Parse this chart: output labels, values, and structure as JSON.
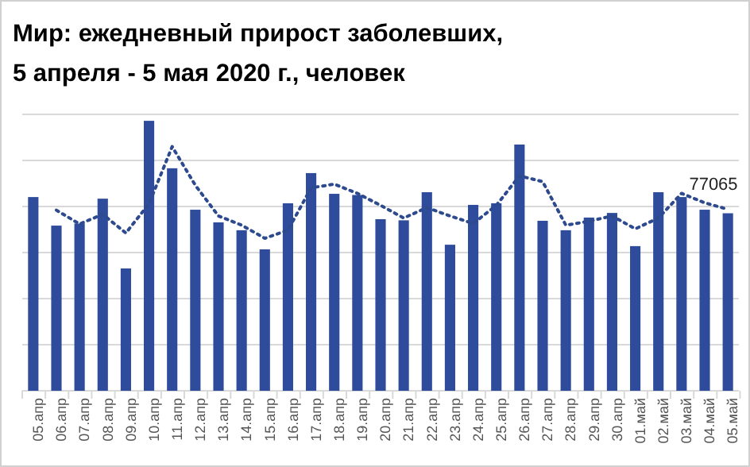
{
  "chart_data": {
    "type": "bar",
    "title": "Мир: ежедневный прирост заболевших, 5 апреля - 5 мая 2020 г., человек",
    "categories": [
      "05.апр",
      "06.апр",
      "07.апр",
      "08.апр",
      "09.апр",
      "10.апр",
      "11.апр",
      "12.апр",
      "13.апр",
      "14.апр",
      "15.апр",
      "16.апр",
      "17.апр",
      "18.апр",
      "19.апр",
      "20.апр",
      "21.апр",
      "22.апр",
      "23.апр",
      "24.апр",
      "25.апр",
      "26.апр",
      "27.апр",
      "28.апр",
      "29.апр",
      "30.апр",
      "01.май",
      "02.май",
      "03.май",
      "04.май",
      "05.май"
    ],
    "series": [
      {
        "color": "#2e4c9b",
        "values": [
          84100,
          71700,
          72600,
          83400,
          53100,
          117200,
          96600,
          78600,
          73100,
          69700,
          61400,
          81400,
          94500,
          85500,
          85000,
          74500,
          74000,
          86200,
          63400,
          80700,
          81400,
          106900,
          73800,
          69700,
          75200,
          77200,
          62800,
          86200,
          84100,
          78600,
          77065
        ],
        "value_labels": [
          null,
          null,
          null,
          null,
          null,
          null,
          null,
          null,
          null,
          null,
          null,
          null,
          null,
          null,
          null,
          null,
          null,
          null,
          null,
          null,
          null,
          null,
          null,
          null,
          null,
          null,
          null,
          null,
          null,
          null,
          "77065"
        ]
      },
      {
        "type": "line",
        "color": "#2e4a8e",
        "line_style": "dotted",
        "marker": "none",
        "values": [
          null,
          78400,
          72400,
          76600,
          68500,
          81200,
          106000,
          89200,
          75900,
          71900,
          66200,
          69700,
          88100,
          89700,
          85700,
          80500,
          75000,
          79500,
          75900,
          72600,
          80500,
          93300,
          90800,
          71900,
          73600,
          75900,
          70300,
          75000,
          85700,
          81600,
          78800
        ]
      }
    ],
    "ylim": [
      0,
      120000
    ],
    "yticks": [
      {
        "value": 0,
        "label": null
      },
      {
        "value": 20000,
        "label": null
      },
      {
        "value": 40000,
        "label": null
      },
      {
        "value": 60000,
        "label": null
      },
      {
        "value": 80000,
        "label": null
      },
      {
        "value": 100000,
        "label": null
      },
      {
        "value": 120000,
        "label": null
      }
    ],
    "grid": "y",
    "tick_labels": "x"
  }
}
